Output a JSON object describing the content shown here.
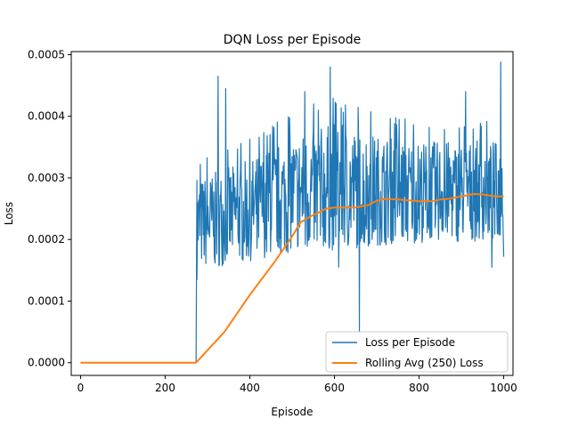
{
  "chart_data": {
    "type": "line",
    "title": "DQN Loss per Episode",
    "xlabel": "Episode",
    "ylabel": "Loss",
    "xlim": [
      -22,
      1022
    ],
    "ylim": [
      -2.06e-05,
      0.000505
    ],
    "xticks": [
      0,
      200,
      400,
      600,
      800,
      1000
    ],
    "xtick_labels": [
      "0",
      "200",
      "400",
      "600",
      "800",
      "1000"
    ],
    "yticks": [
      0,
      0.0001,
      0.0002,
      0.0003,
      0.0004,
      0.0005
    ],
    "ytick_labels": [
      "0.0000",
      "0.0001",
      "0.0002",
      "0.0003",
      "0.0004",
      "0.0005"
    ],
    "grid": false,
    "legend_position": "lower-right",
    "series": [
      {
        "name": "Loss per Episode",
        "color": "#1f77b4",
        "style": "noisy",
        "zero_until_episode": 273,
        "peaks": [
          {
            "episode": 275,
            "value": 0.000296
          },
          {
            "episode": 325,
            "value": 0.000465
          },
          {
            "episode": 343,
            "value": 0.000445
          },
          {
            "episode": 530,
            "value": 0.00044
          },
          {
            "episode": 590,
            "value": 0.00048
          },
          {
            "episode": 910,
            "value": 0.00044
          },
          {
            "episode": 993,
            "value": 0.000488
          }
        ],
        "troughs": [
          {
            "episode": 275,
            "value": 0.000135
          },
          {
            "episode": 610,
            "value": 0.000155
          },
          {
            "episode": 659,
            "value": 5e-05
          },
          {
            "episode": 972,
            "value": 0.000155
          },
          {
            "episode": 1000,
            "value": 0.000172
          }
        ],
        "band": [
          {
            "episode": 280,
            "low": 0.00015,
            "high": 0.0003
          },
          {
            "episode": 400,
            "low": 0.000165,
            "high": 0.00033
          },
          {
            "episode": 500,
            "low": 0.00018,
            "high": 0.00037
          },
          {
            "episode": 600,
            "low": 0.00018,
            "high": 0.00039
          },
          {
            "episode": 700,
            "low": 0.00019,
            "high": 0.00037
          },
          {
            "episode": 800,
            "low": 0.000195,
            "high": 0.00036
          },
          {
            "episode": 900,
            "low": 0.000195,
            "high": 0.00036
          },
          {
            "episode": 1000,
            "low": 0.0002,
            "high": 0.00036
          }
        ]
      },
      {
        "name": "Rolling Avg (250) Loss",
        "color": "#ff7f0e",
        "style": "smooth",
        "x": [
          0,
          273,
          340,
          400,
          460,
          500,
          520,
          545,
          560,
          580,
          600,
          620,
          650,
          680,
          700,
          720,
          750,
          800,
          830,
          850,
          870,
          900,
          930,
          950,
          980,
          1000
        ],
        "y": [
          0,
          0,
          5e-05,
          0.00011,
          0.000165,
          0.000205,
          0.000228,
          0.000238,
          0.000243,
          0.00025,
          0.000252,
          0.000252,
          0.000252,
          0.000256,
          0.000263,
          0.000266,
          0.000265,
          0.000262,
          0.000262,
          0.000265,
          0.000266,
          0.00027,
          0.000274,
          0.000273,
          0.00027,
          0.00027
        ]
      }
    ]
  }
}
